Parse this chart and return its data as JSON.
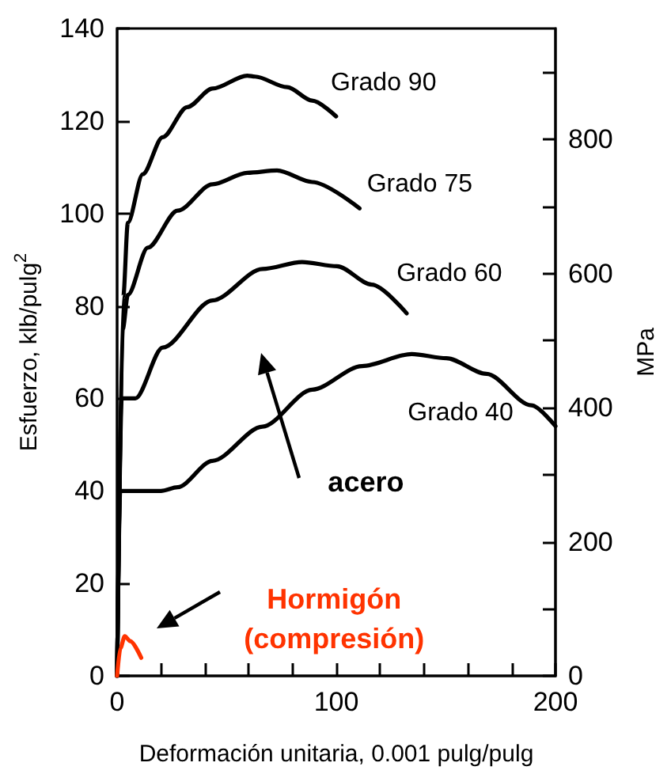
{
  "chart_data": {
    "type": "line",
    "xlabel": "Deformación unitaria, 0.001 pulg/pulg",
    "ylabel": "Esfuerzo, klb/pulg$^{2}$",
    "y2label": "MPa",
    "xlim": [
      0,
      200
    ],
    "xticks": [
      0,
      {
        "value": 20,
        "label": null
      },
      {
        "value": 40,
        "label": null
      },
      {
        "value": 60,
        "label": null
      },
      {
        "value": 80,
        "label": null
      },
      100,
      {
        "value": 120,
        "label": null
      },
      {
        "value": 140,
        "label": null
      },
      {
        "value": 160,
        "label": null
      },
      {
        "value": 180,
        "label": null
      },
      200
    ],
    "ylim": [
      0,
      140
    ],
    "yticks": [
      0,
      20,
      40,
      60,
      80,
      100,
      120,
      140
    ],
    "y2lim": [
      0,
      965.3
    ],
    "y2ticks": [
      0,
      {
        "value": 100,
        "label": null
      },
      200,
      {
        "value": 300,
        "label": null
      },
      400,
      {
        "value": 500,
        "label": null
      },
      600,
      {
        "value": 700,
        "label": null
      },
      800,
      {
        "value": 900,
        "label": null
      }
    ],
    "grid": false,
    "series": [
      {
        "name": "Grado 90",
        "color": "#000000",
        "x": [
          0,
          2.8,
          4.9,
          11.7,
          20.8,
          32,
          43.5,
          59.4,
          62.9,
          77.6,
          89,
          99.9
        ],
        "values": [
          0,
          82,
          98,
          108.5,
          116.5,
          123,
          127,
          129.8,
          129.6,
          127.3,
          124.4,
          121
        ]
      },
      {
        "name": "Grado 75",
        "color": "#000000",
        "x": [
          0,
          2.6,
          4.9,
          14,
          27.6,
          43.5,
          59.4,
          73,
          89,
          110.6
        ],
        "values": [
          0,
          75,
          82.4,
          92.6,
          100.6,
          106.3,
          108.8,
          109.3,
          106.8,
          101.1
        ]
      },
      {
        "name": "Grado 60",
        "color": "#000000",
        "x": [
          0,
          2.1,
          8.3,
          20.8,
          43.5,
          66.3,
          84.4,
          100.3,
          116.2,
          132.1
        ],
        "values": [
          0,
          60,
          60,
          71,
          81.2,
          88,
          89.5,
          88.6,
          84.6,
          78.4
        ]
      },
      {
        "name": "Grado 40",
        "color": "#000000",
        "x": [
          0,
          1.4,
          20,
          27.6,
          43.5,
          66.3,
          89,
          111.7,
          134.4,
          150.2,
          168.5,
          189,
          200
        ],
        "values": [
          0,
          40,
          40,
          40.8,
          46.5,
          53.9,
          61.9,
          67,
          69.6,
          68.7,
          65.3,
          58.5,
          54
        ]
      },
      {
        "color": "#ff3300",
        "x": [
          0,
          1.5,
          3.5,
          6,
          11
        ],
        "values": [
          0,
          6,
          8.6,
          7.5,
          3.9
        ]
      }
    ],
    "annotations": [
      "acero",
      "Hormigón\n(compresión)"
    ]
  }
}
